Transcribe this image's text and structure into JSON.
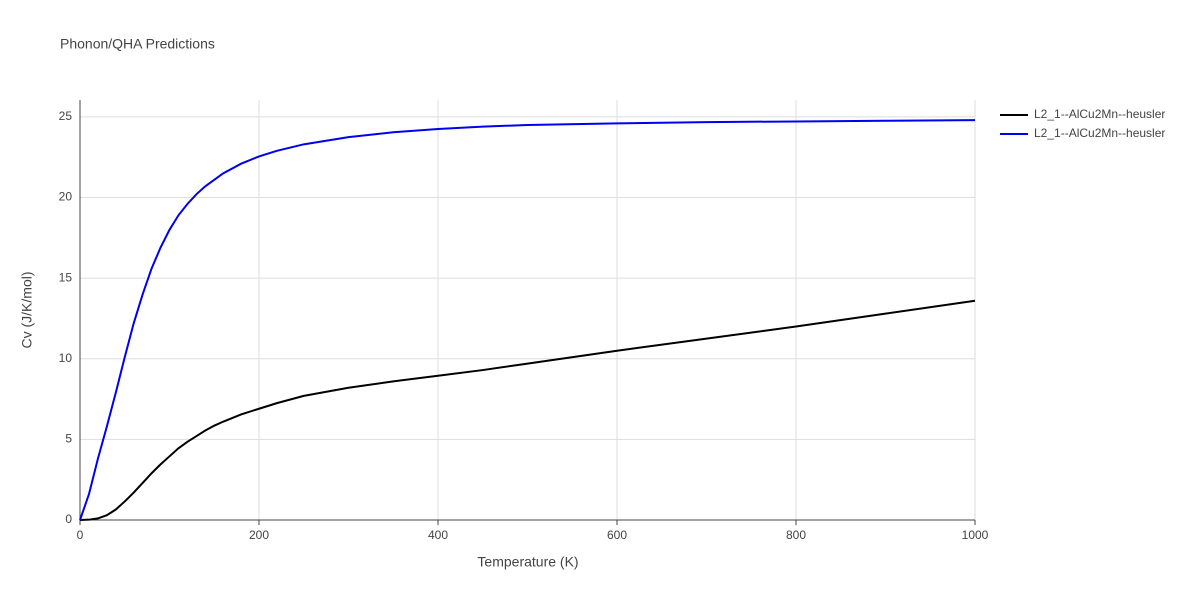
{
  "chart_data": {
    "type": "line",
    "title": "Phonon/QHA Predictions",
    "x_label": "Temperature (K)",
    "y_label": "Cv (J/K/mol)",
    "x": [
      0,
      10,
      20,
      30,
      40,
      50,
      60,
      70,
      80,
      90,
      100,
      110,
      120,
      130,
      140,
      150,
      160,
      180,
      200,
      220,
      250,
      300,
      350,
      400,
      450,
      500,
      600,
      700,
      800,
      900,
      1000
    ],
    "series": [
      {
        "name": "L2_1--AlCu2Mn--heusler",
        "color": "#000000",
        "values": [
          0,
          0.02,
          0.1,
          0.3,
          0.65,
          1.15,
          1.7,
          2.3,
          2.9,
          3.45,
          3.95,
          4.45,
          4.85,
          5.2,
          5.55,
          5.85,
          6.1,
          6.55,
          6.9,
          7.25,
          7.7,
          8.2,
          8.6,
          8.95,
          9.3,
          9.7,
          10.5,
          11.25,
          12.0,
          12.8,
          13.6
        ]
      },
      {
        "name": "L2_1--AlCu2Mn--heusler",
        "color": "#0000ee",
        "values": [
          0,
          1.6,
          3.8,
          5.8,
          7.9,
          10.1,
          12.2,
          14.0,
          15.6,
          16.9,
          18.0,
          18.9,
          19.6,
          20.2,
          20.7,
          21.1,
          21.5,
          22.1,
          22.55,
          22.9,
          23.3,
          23.75,
          24.05,
          24.25,
          24.4,
          24.5,
          24.6,
          24.68,
          24.72,
          24.76,
          24.8
        ]
      }
    ],
    "xlim": [
      0,
      1000
    ],
    "xticks": [
      0,
      200,
      400,
      600,
      800,
      1000
    ],
    "ylim": [
      0,
      26.05
    ],
    "yticks": [
      0,
      5,
      10,
      15,
      20,
      25
    ],
    "grid": true,
    "legend": "outside-right"
  }
}
